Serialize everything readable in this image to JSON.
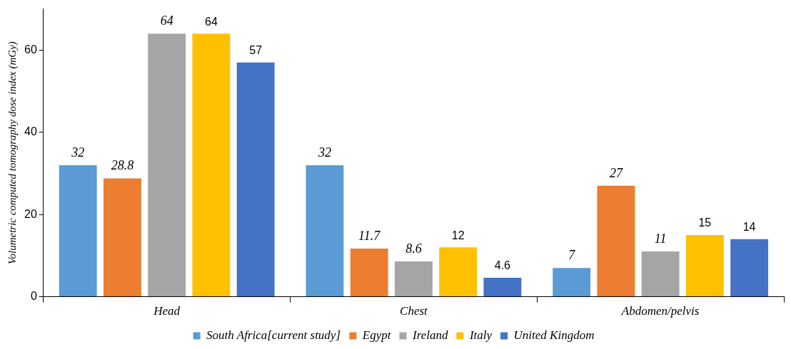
{
  "chart_data": {
    "type": "bar",
    "ylabel": "Volumetric computed tomography dose index (mGy)",
    "categories": [
      "Head",
      "Chest",
      "Abdomen/pelvis"
    ],
    "series": [
      {
        "name": "South Africa[current study]",
        "color": "#5b9bd5",
        "values": [
          32,
          32,
          7
        ]
      },
      {
        "name": "Egypt",
        "color": "#ed7d31",
        "values": [
          28.8,
          11.7,
          27
        ]
      },
      {
        "name": "Ireland",
        "color": "#a5a5a5",
        "values": [
          64,
          8.6,
          11
        ]
      },
      {
        "name": "Italy",
        "color": "#ffc000",
        "values": [
          64,
          12,
          15
        ]
      },
      {
        "name": "United Kingdom",
        "color": "#4472c4",
        "values": [
          57,
          4.6,
          14
        ]
      }
    ],
    "ylim": [
      0,
      70
    ],
    "yticks": [
      0,
      20,
      40,
      60
    ],
    "grid": false,
    "legend": "bottom",
    "data_labels": true
  }
}
